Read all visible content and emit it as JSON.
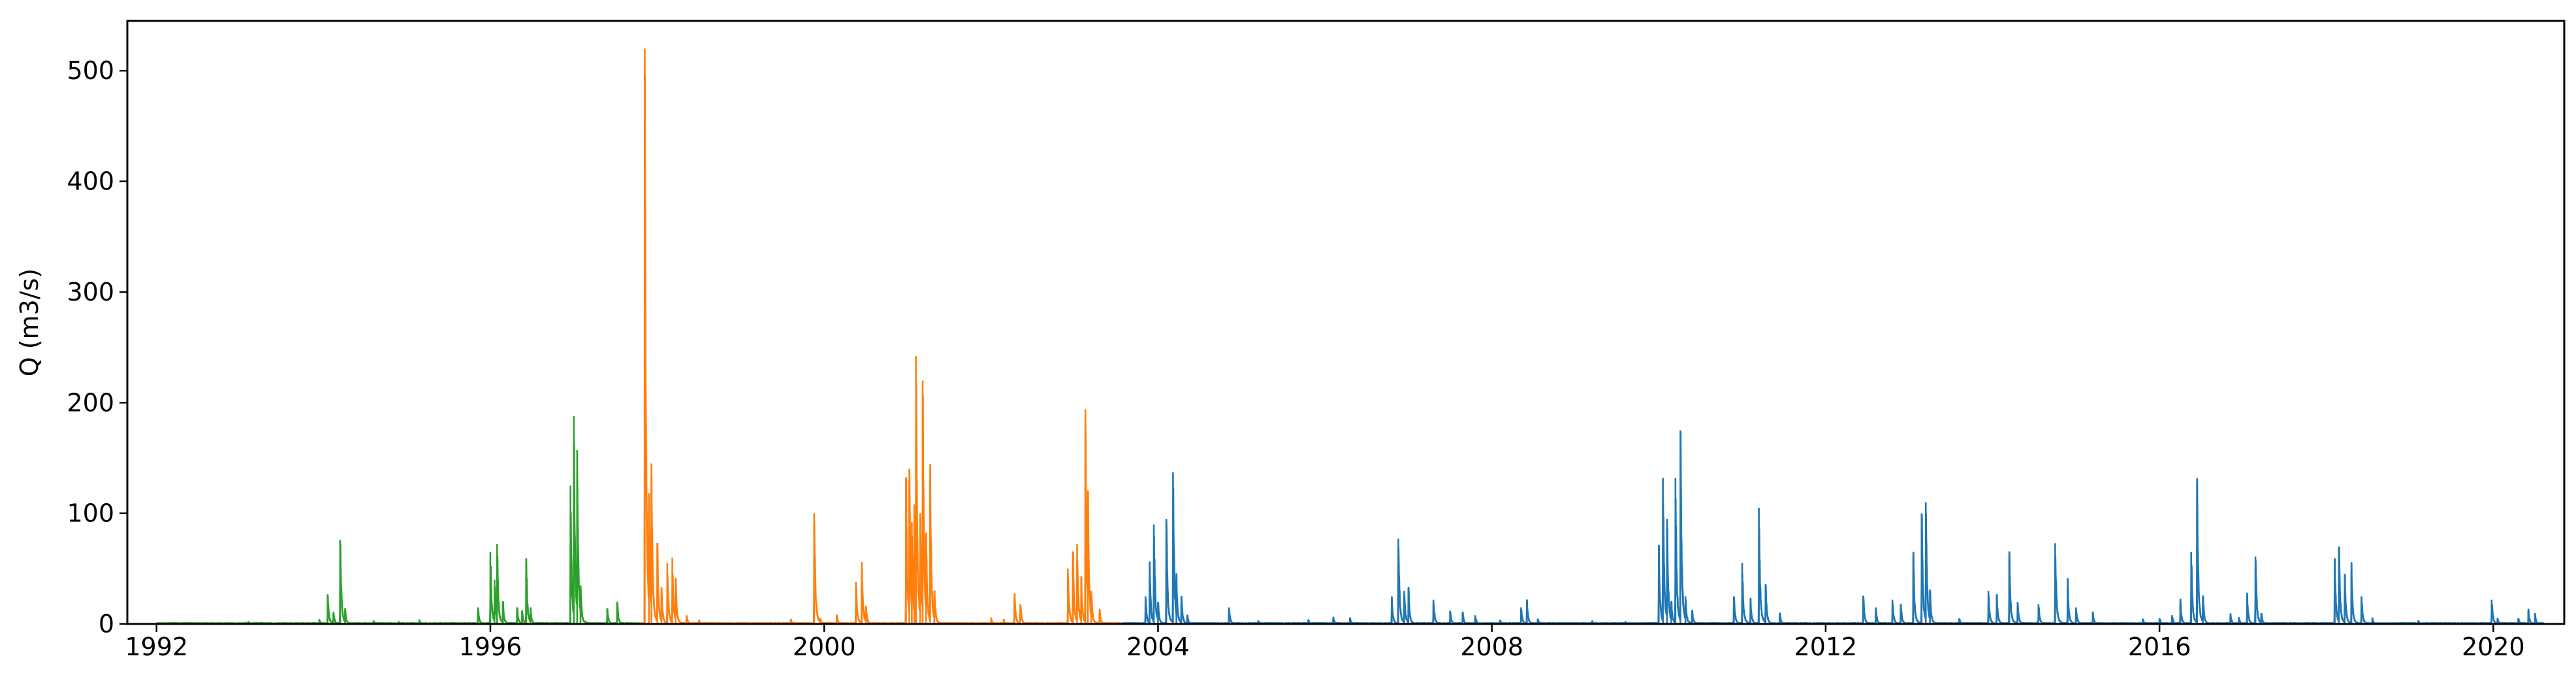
{
  "chart_data": {
    "type": "line",
    "ylabel": "Q (m3/s)",
    "xlabel": "",
    "title": "",
    "xlim": [
      1991.65,
      2020.85
    ],
    "ylim": [
      0,
      545
    ],
    "x_ticks": [
      1992,
      1996,
      2000,
      2004,
      2008,
      2012,
      2016,
      2020
    ],
    "x_tick_labels": [
      "1992",
      "1996",
      "2000",
      "2004",
      "2008",
      "2012",
      "2016",
      "2020"
    ],
    "y_ticks": [
      0,
      100,
      200,
      300,
      400,
      500
    ],
    "y_tick_labels": [
      "0",
      "100",
      "200",
      "300",
      "400",
      "500"
    ],
    "grid": false,
    "series": [
      {
        "color": "#2ca02c",
        "range": [
          1992.0,
          1997.78
        ],
        "peaks": [
          [
            1993.1,
            2
          ],
          [
            1993.95,
            4
          ],
          [
            1994.05,
            27
          ],
          [
            1994.12,
            10
          ],
          [
            1994.2,
            76
          ],
          [
            1994.26,
            12
          ],
          [
            1994.6,
            3
          ],
          [
            1994.9,
            2
          ],
          [
            1995.15,
            3
          ],
          [
            1995.85,
            15
          ],
          [
            1996.0,
            65
          ],
          [
            1996.05,
            40
          ],
          [
            1996.08,
            72
          ],
          [
            1996.15,
            20
          ],
          [
            1996.32,
            15
          ],
          [
            1996.38,
            12
          ],
          [
            1996.43,
            52
          ],
          [
            1996.48,
            14
          ],
          [
            1996.96,
            125
          ],
          [
            1997.0,
            188
          ],
          [
            1997.04,
            157
          ],
          [
            1997.08,
            35
          ],
          [
            1997.4,
            14
          ],
          [
            1997.52,
            18
          ]
        ]
      },
      {
        "color": "#ff7f0e",
        "range": [
          1997.78,
          2003.58
        ],
        "peaks": [
          [
            1997.85,
            520
          ],
          [
            1997.9,
            112
          ],
          [
            1997.93,
            145
          ],
          [
            1998.0,
            73
          ],
          [
            1998.05,
            30
          ],
          [
            1998.12,
            55
          ],
          [
            1998.18,
            60
          ],
          [
            1998.22,
            40
          ],
          [
            1998.35,
            8
          ],
          [
            1998.5,
            3
          ],
          [
            1999.6,
            4
          ],
          [
            1999.88,
            100
          ],
          [
            1999.95,
            5
          ],
          [
            2000.15,
            8
          ],
          [
            2000.38,
            38
          ],
          [
            2000.45,
            56
          ],
          [
            2000.5,
            15
          ],
          [
            2000.98,
            132
          ],
          [
            2001.02,
            130
          ],
          [
            2001.05,
            92
          ],
          [
            2001.08,
            108
          ],
          [
            2001.1,
            242
          ],
          [
            2001.15,
            100
          ],
          [
            2001.18,
            220
          ],
          [
            2001.22,
            80
          ],
          [
            2001.27,
            127
          ],
          [
            2001.32,
            30
          ],
          [
            2002.0,
            5
          ],
          [
            2002.15,
            4
          ],
          [
            2002.28,
            25
          ],
          [
            2002.35,
            18
          ],
          [
            2002.92,
            50
          ],
          [
            2002.98,
            65
          ],
          [
            2003.03,
            72
          ],
          [
            2003.08,
            40
          ],
          [
            2003.13,
            194
          ],
          [
            2003.16,
            115
          ],
          [
            2003.2,
            30
          ],
          [
            2003.3,
            12
          ]
        ]
      },
      {
        "color": "#1f77b4",
        "range": [
          2003.58,
          2020.6
        ],
        "peaks": [
          [
            2003.85,
            25
          ],
          [
            2003.9,
            48
          ],
          [
            2003.95,
            90
          ],
          [
            2004.0,
            20
          ],
          [
            2004.1,
            95
          ],
          [
            2004.18,
            137
          ],
          [
            2004.22,
            40
          ],
          [
            2004.28,
            25
          ],
          [
            2004.35,
            8
          ],
          [
            2004.85,
            15
          ],
          [
            2005.2,
            3
          ],
          [
            2005.8,
            4
          ],
          [
            2006.1,
            6
          ],
          [
            2006.3,
            5
          ],
          [
            2006.8,
            25
          ],
          [
            2006.88,
            77
          ],
          [
            2006.95,
            30
          ],
          [
            2007.0,
            32
          ],
          [
            2007.3,
            22
          ],
          [
            2007.5,
            12
          ],
          [
            2007.65,
            10
          ],
          [
            2007.8,
            8
          ],
          [
            2008.1,
            3
          ],
          [
            2008.35,
            15
          ],
          [
            2008.42,
            20
          ],
          [
            2008.55,
            5
          ],
          [
            2009.2,
            3
          ],
          [
            2009.6,
            2
          ],
          [
            2010.0,
            70
          ],
          [
            2010.05,
            132
          ],
          [
            2010.1,
            95
          ],
          [
            2010.15,
            20
          ],
          [
            2010.2,
            132
          ],
          [
            2010.26,
            175
          ],
          [
            2010.32,
            25
          ],
          [
            2010.4,
            12
          ],
          [
            2010.9,
            25
          ],
          [
            2011.0,
            55
          ],
          [
            2011.1,
            20
          ],
          [
            2011.2,
            105
          ],
          [
            2011.28,
            35
          ],
          [
            2011.45,
            10
          ],
          [
            2012.45,
            25
          ],
          [
            2012.6,
            15
          ],
          [
            2012.8,
            22
          ],
          [
            2012.9,
            18
          ],
          [
            2013.05,
            62
          ],
          [
            2013.15,
            100
          ],
          [
            2013.2,
            110
          ],
          [
            2013.25,
            30
          ],
          [
            2013.6,
            5
          ],
          [
            2013.95,
            30
          ],
          [
            2014.05,
            25
          ],
          [
            2014.2,
            63
          ],
          [
            2014.3,
            20
          ],
          [
            2014.55,
            18
          ],
          [
            2014.75,
            73
          ],
          [
            2014.9,
            35
          ],
          [
            2015.0,
            15
          ],
          [
            2015.2,
            10
          ],
          [
            2015.8,
            4
          ],
          [
            2016.0,
            5
          ],
          [
            2016.15,
            8
          ],
          [
            2016.25,
            20
          ],
          [
            2016.38,
            65
          ],
          [
            2016.45,
            127
          ],
          [
            2016.52,
            25
          ],
          [
            2016.85,
            8
          ],
          [
            2016.95,
            6
          ],
          [
            2017.05,
            25
          ],
          [
            2017.15,
            61
          ],
          [
            2017.22,
            10
          ],
          [
            2018.1,
            55
          ],
          [
            2018.15,
            70
          ],
          [
            2018.22,
            45
          ],
          [
            2018.3,
            47
          ],
          [
            2018.42,
            25
          ],
          [
            2018.55,
            5
          ],
          [
            2019.1,
            3
          ],
          [
            2019.98,
            22
          ],
          [
            2020.05,
            5
          ],
          [
            2020.3,
            5
          ],
          [
            2020.42,
            12
          ],
          [
            2020.5,
            8
          ]
        ]
      }
    ]
  }
}
